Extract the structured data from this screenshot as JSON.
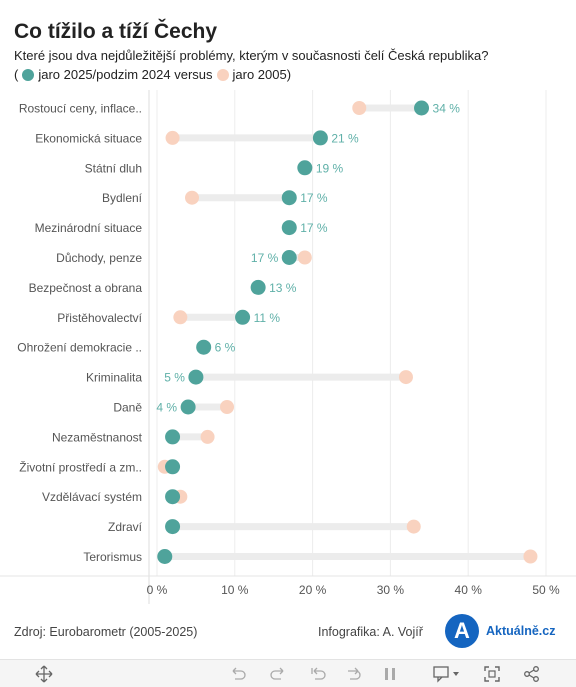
{
  "title": "Co tížilo a tíží Čechy",
  "subtitle": "Které jsou dva nejdůležitější problémy, kterým v současnosti čelí Česká republika?",
  "legend": {
    "open": "(",
    "current_label": "jaro 2025/podzim 2024 versus",
    "past_label": "jaro 2005)",
    "current_color": "#4fa39b",
    "past_color": "#f9d2bf"
  },
  "chart_data": {
    "type": "dumbbell",
    "categories": [
      "Rostoucí ceny, inflace..",
      "Ekonomická situace",
      "Státní dluh",
      "Bydlení",
      "Mezinárodní situace",
      "Důchody, penze",
      "Bezpečnost a obrana",
      "Přistěhovalectví",
      "Ohrožení demokracie ..",
      "Kriminalita",
      "Daně",
      "Nezaměstnanost",
      "Životní prostředí a zm..",
      "Vzdělávací systém",
      "Zdraví",
      "Terorismus"
    ],
    "series": [
      {
        "name": "jaro 2025/podzim 2024",
        "values": [
          34,
          21,
          19,
          17,
          17,
          17,
          13,
          11,
          6,
          5,
          4,
          2,
          2,
          2,
          2,
          1
        ]
      },
      {
        "name": "jaro 2005",
        "values": [
          26,
          2,
          null,
          4.5,
          null,
          19,
          null,
          3,
          null,
          32,
          9,
          6.5,
          1,
          3,
          33,
          48
        ]
      }
    ],
    "value_labels": [
      "34 %",
      "21 %",
      "19 %",
      "17 %",
      "17 %",
      "17 %",
      "13 %",
      "11 %",
      "6 %",
      "5 %",
      "4 %",
      "",
      "",
      "",
      "",
      ""
    ],
    "label_side": [
      "right",
      "right",
      "right",
      "right",
      "right",
      "left",
      "right",
      "right",
      "right",
      "left",
      "left",
      "",
      "",
      "",
      "",
      ""
    ],
    "x_ticks": [
      "0 %",
      "10 %",
      "20 %",
      "30 %",
      "40 %",
      "50 %"
    ],
    "xlim": [
      0,
      50
    ],
    "grid": true,
    "colors": {
      "current": "#4fa39b",
      "past": "#f9d2bf",
      "connector": "#ececec",
      "label": "#5fb0a8"
    }
  },
  "footer": {
    "source": "Zdroj: Eurobarometr (2005-2025)",
    "author": "Infografika: A. Vojíř",
    "logo_letter": "A",
    "logo_text": "Aktuálně.cz"
  },
  "toolbar": {
    "icons": [
      "move-icon",
      "undo-icon",
      "redo-icon",
      "revert-icon",
      "refresh-icon",
      "pause-icon",
      "comment-icon",
      "fullscreen-icon",
      "share-icon"
    ]
  }
}
